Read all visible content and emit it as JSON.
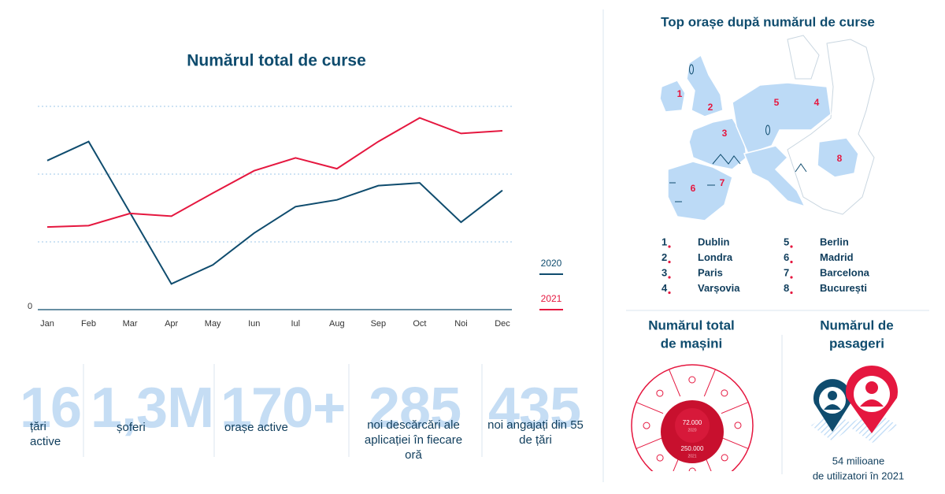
{
  "chart_data": {
    "type": "line",
    "title": "Numărul total de curse",
    "categories": [
      "Jan",
      "Feb",
      "Mar",
      "Apr",
      "May",
      "Iun",
      "Iul",
      "Aug",
      "Sep",
      "Oct",
      "Noi",
      "Dec"
    ],
    "series": [
      {
        "name": "2020",
        "color": "#0f4c6e",
        "values": [
          2.2,
          2.48,
          1.43,
          0.38,
          0.66,
          1.13,
          1.52,
          1.62,
          1.83,
          1.87,
          1.29,
          1.76
        ]
      },
      {
        "name": "2021",
        "color": "#e5173f",
        "values": [
          1.22,
          1.24,
          1.42,
          1.38,
          1.72,
          2.05,
          2.24,
          2.08,
          2.48,
          2.83,
          2.6,
          2.64
        ]
      }
    ],
    "ylim": [
      0,
      3.5
    ],
    "yticks": [
      0
    ],
    "ygrid": [
      1,
      2,
      3
    ],
    "grid": true
  },
  "stats": [
    {
      "value": "16",
      "label": "țări active"
    },
    {
      "value": "1,3M",
      "label": "șoferi"
    },
    {
      "value": "170+",
      "label": "orașe active"
    },
    {
      "value": "285",
      "label": "noi descărcări ale aplicației în fiecare oră"
    },
    {
      "value": "435",
      "label": "noi angajați din 55 de țări"
    }
  ],
  "top_cities": {
    "title": "Top orașe după numărul de curse",
    "cities": [
      {
        "rank": 1,
        "name": "Dublin"
      },
      {
        "rank": 2,
        "name": "Londra"
      },
      {
        "rank": 3,
        "name": "Paris"
      },
      {
        "rank": 4,
        "name": "Varșovia"
      },
      {
        "rank": 5,
        "name": "Berlin"
      },
      {
        "rank": 6,
        "name": "Madrid"
      },
      {
        "rank": 7,
        "name": "Barcelona"
      },
      {
        "rank": 8,
        "name": "București"
      }
    ]
  },
  "cars": {
    "title_lines": [
      "Numărul total",
      "de mașini"
    ],
    "readings": [
      {
        "value": "72.000",
        "year": "2020"
      },
      {
        "value": "250.000",
        "year": "2021"
      }
    ]
  },
  "passengers": {
    "title_lines": [
      "Numărul de",
      "pasageri"
    ],
    "caption_lines": [
      "54 milioane",
      "de utilizatori în 2021"
    ]
  }
}
